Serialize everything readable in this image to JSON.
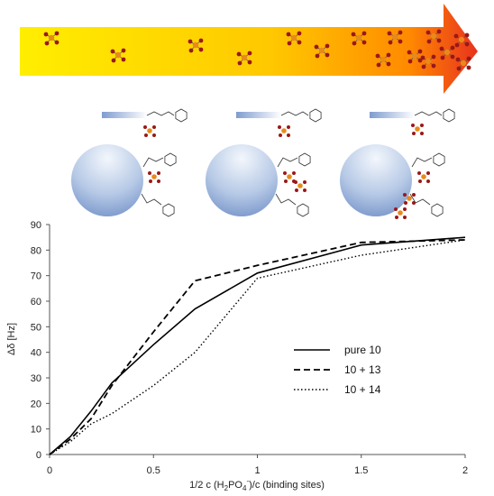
{
  "chart_data": {
    "type": "line",
    "xlabel": "1/2 c (H2PO4-)/c (binding sites)",
    "xlabel_parts": [
      "1/2 c (H",
      "2",
      "PO",
      "4",
      "-",
      ")/c (binding sites)"
    ],
    "ylabel": "Δδ [Hz]",
    "xlim": [
      0,
      2
    ],
    "ylim": [
      0,
      90
    ],
    "x_ticks": [
      "0",
      "0.5",
      "1",
      "1.5",
      "2"
    ],
    "y_ticks": [
      "0",
      "10",
      "20",
      "30",
      "40",
      "50",
      "60",
      "70",
      "80",
      "90"
    ],
    "grid": false,
    "legend_position": "right",
    "series": [
      {
        "name": "pure 10",
        "style": "solid",
        "x": [
          0,
          0.1,
          0.2,
          0.3,
          0.5,
          0.7,
          1.0,
          1.5,
          2.0
        ],
        "y": [
          0,
          7,
          17,
          28,
          43,
          57,
          71,
          82,
          85
        ]
      },
      {
        "name": "10 + 13",
        "style": "dashed",
        "x": [
          0,
          0.1,
          0.2,
          0.3,
          0.5,
          0.7,
          1.0,
          1.5,
          2.0
        ],
        "y": [
          0,
          6,
          14,
          27,
          48,
          68,
          74,
          83,
          84
        ]
      },
      {
        "name": "10 + 14",
        "style": "dotted",
        "x": [
          0,
          0.1,
          0.2,
          0.3,
          0.5,
          0.7,
          1.0,
          1.5,
          2.0
        ],
        "y": [
          0,
          5,
          12,
          16,
          27,
          40,
          69,
          78,
          84
        ]
      }
    ]
  },
  "illustration": {
    "arrow_colors": [
      "#ffee00",
      "#ffc800",
      "#ff6a00",
      "#e8321e"
    ],
    "phosphate_color": "#e88a1a",
    "oxygen_color": "#9a1818",
    "sphere_color_light": "#eef4fb",
    "sphere_color_dark": "#6f8ec6"
  }
}
